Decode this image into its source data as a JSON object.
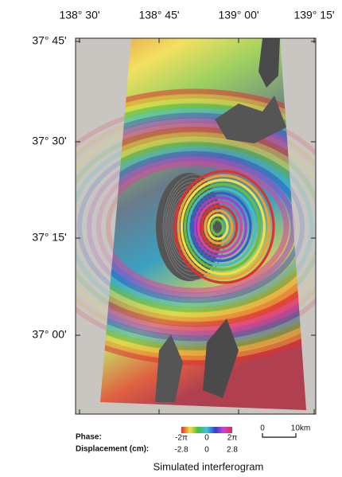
{
  "axes": {
    "top_labels": [
      "138° 30'",
      "138° 45'",
      "139° 00'",
      "139° 15'"
    ],
    "left_labels": [
      "37° 45'",
      "37° 30'",
      "37° 15'",
      "37° 00'"
    ]
  },
  "legend": {
    "phase_label": "Phase:",
    "displacement_label": "Displacement (cm):",
    "phase_ticks": [
      "-2π",
      "0",
      "2π"
    ],
    "displacement_ticks": [
      "-2.8",
      "0",
      "2.8"
    ]
  },
  "scale_bar": {
    "start": "0",
    "end": "10km"
  },
  "caption": "Simulated interferogram"
}
